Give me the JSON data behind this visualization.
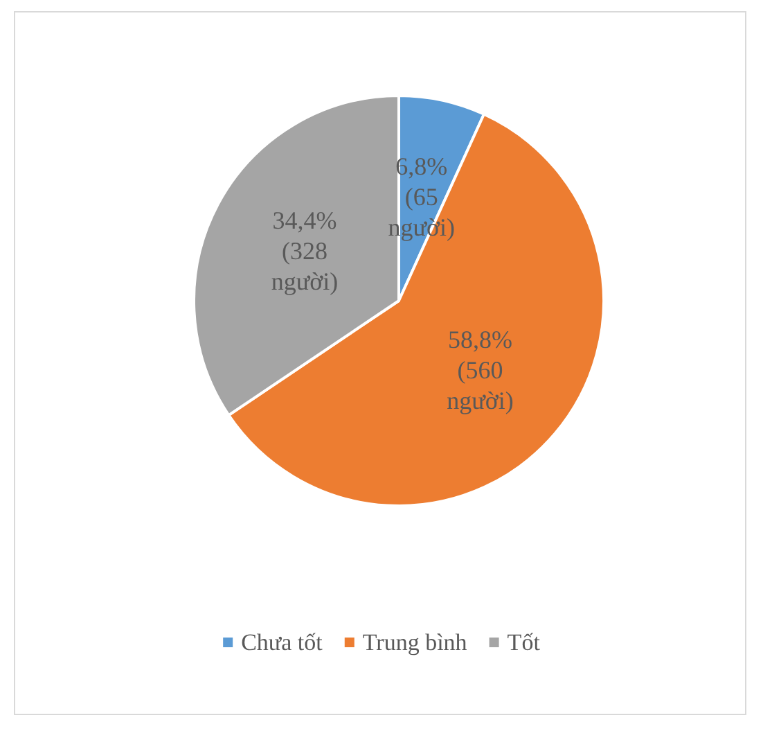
{
  "chart_data": {
    "type": "pie",
    "categories": [
      "Chưa tốt",
      "Trung bình",
      "Tốt"
    ],
    "values": [
      65,
      560,
      328
    ],
    "colors": [
      "#5b9bd5",
      "#ed7d31",
      "#a5a5a5"
    ],
    "value_labels": [
      "6,8%\n(65\nngười)",
      "58,8%\n(560\nngười)",
      "34,4%\n(328\nngười)"
    ],
    "legend": "bottom"
  }
}
